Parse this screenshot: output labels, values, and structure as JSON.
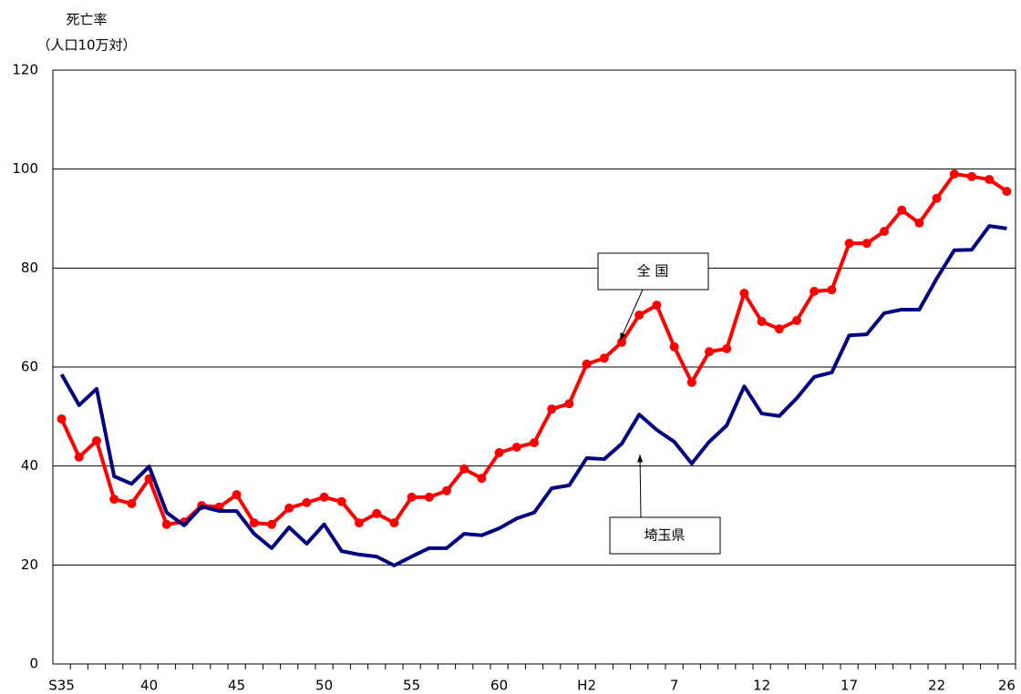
{
  "chart_data": {
    "type": "line",
    "y_label_line1": "死亡率",
    "y_label_line2": "（人口10万対）",
    "categories": [
      "S35",
      null,
      null,
      null,
      null,
      "40",
      null,
      null,
      null,
      null,
      "45",
      null,
      null,
      null,
      null,
      "50",
      null,
      null,
      null,
      null,
      "55",
      null,
      null,
      null,
      null,
      "60",
      null,
      null,
      null,
      null,
      "H2",
      null,
      null,
      null,
      null,
      "7",
      null,
      null,
      null,
      null,
      "12",
      null,
      null,
      null,
      null,
      "17",
      null,
      null,
      null,
      null,
      "22",
      null,
      null,
      null,
      "26"
    ],
    "series": [
      {
        "name": "全 国",
        "color": "#ff0000",
        "markers": true,
        "values": [
          49.5,
          41.8,
          45.1,
          33.3,
          32.4,
          37.4,
          28.2,
          28.7,
          32.0,
          31.7,
          34.2,
          28.5,
          28.2,
          31.5,
          32.6,
          33.7,
          32.8,
          28.5,
          30.4,
          28.5,
          33.7,
          33.7,
          35.0,
          39.4,
          37.5,
          42.7,
          43.8,
          44.7,
          51.5,
          52.6,
          60.6,
          61.8,
          65.0,
          70.5,
          72.5,
          64.1,
          56.9,
          63.1,
          63.7,
          74.9,
          69.2,
          67.7,
          69.4,
          75.3,
          75.6,
          85.0,
          85.0,
          87.4,
          91.7,
          89.1,
          94.1,
          99.0,
          98.5,
          97.9,
          95.5
        ]
      },
      {
        "name": "埼玉県",
        "color": "#000080",
        "markers": false,
        "values": [
          58.5,
          52.3,
          55.6,
          37.9,
          36.4,
          39.9,
          30.6,
          28.0,
          31.8,
          30.9,
          30.9,
          26.3,
          23.4,
          27.6,
          24.3,
          28.2,
          22.8,
          22.1,
          21.7,
          19.9,
          21.7,
          23.4,
          23.4,
          26.3,
          26.0,
          27.4,
          29.4,
          30.6,
          35.5,
          36.1,
          41.6,
          41.4,
          44.5,
          50.4,
          47.3,
          44.9,
          40.5,
          44.9,
          48.2,
          56.1,
          50.6,
          50.1,
          53.7,
          58.0,
          58.9,
          66.4,
          66.6,
          70.9,
          71.6,
          71.6,
          77.9,
          83.6,
          83.7,
          88.5,
          88.0
        ]
      }
    ],
    "ylim": [
      0,
      120
    ],
    "yticks": [
      0,
      20,
      40,
      60,
      80,
      100,
      120
    ],
    "grid": true
  }
}
